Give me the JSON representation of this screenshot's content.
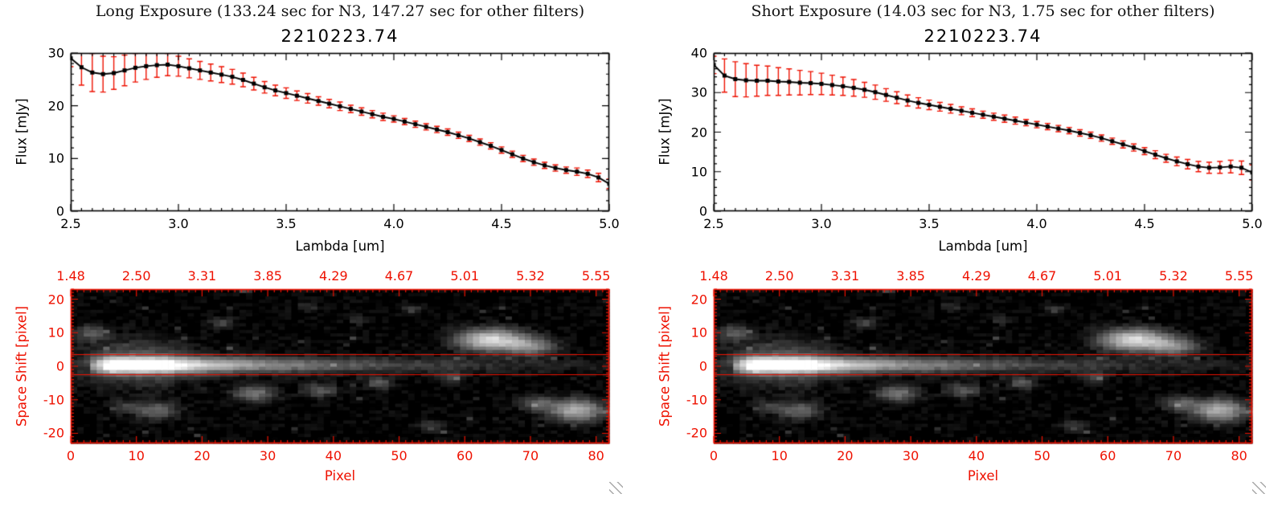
{
  "colors": {
    "red": "#ee1100",
    "black": "#000000",
    "bg": "#ffffff"
  },
  "panels": [
    {
      "header": "Long Exposure (133.24 sec for N3, 147.27 sec for other filters)",
      "spectrum": 0,
      "image": 1
    },
    {
      "header": "Short Exposure (14.03 sec for N3, 1.75 sec for other filters)",
      "spectrum": 2,
      "image": 3
    }
  ],
  "chart_data": [
    {
      "type": "line",
      "panel": "Long Exposure",
      "title": "2210223.74",
      "xlabel": "Lambda [um]",
      "ylabel": "Flux [mJy]",
      "xlim": [
        2.5,
        5.0
      ],
      "ylim": [
        0,
        30
      ],
      "xticks": [
        2.5,
        3.0,
        3.5,
        4.0,
        4.5,
        5.0
      ],
      "xtick_labels": [
        "2.5",
        "3.0",
        "3.5",
        "4.0",
        "4.5",
        "5.0"
      ],
      "yticks": [
        0,
        10,
        20,
        30
      ],
      "ytick_labels": [
        "0",
        "10",
        "20",
        "30"
      ],
      "x_minor_step": 0.05,
      "y_minor_step": 2,
      "marker": "square",
      "line_color": "#000000",
      "error_color": "#ee1100",
      "x": [
        2.5,
        2.55,
        2.6,
        2.65,
        2.7,
        2.75,
        2.8,
        2.85,
        2.9,
        2.95,
        3.0,
        3.05,
        3.1,
        3.15,
        3.2,
        3.25,
        3.3,
        3.35,
        3.4,
        3.45,
        3.5,
        3.55,
        3.6,
        3.65,
        3.7,
        3.75,
        3.8,
        3.85,
        3.9,
        3.95,
        4.0,
        4.05,
        4.1,
        4.15,
        4.2,
        4.25,
        4.3,
        4.35,
        4.4,
        4.45,
        4.5,
        4.55,
        4.6,
        4.65,
        4.7,
        4.75,
        4.8,
        4.85,
        4.9,
        4.95,
        5.0
      ],
      "y": [
        29.0,
        27.3,
        26.3,
        26.0,
        26.2,
        26.7,
        27.2,
        27.5,
        27.7,
        27.8,
        27.5,
        27.1,
        26.7,
        26.3,
        25.9,
        25.5,
        24.9,
        24.2,
        23.5,
        22.9,
        22.4,
        21.9,
        21.4,
        20.9,
        20.4,
        19.9,
        19.4,
        18.9,
        18.4,
        17.9,
        17.5,
        17.0,
        16.5,
        16.0,
        15.5,
        15.0,
        14.4,
        13.8,
        13.1,
        12.4,
        11.6,
        10.8,
        10.0,
        9.3,
        8.7,
        8.2,
        7.8,
        7.5,
        7.1,
        6.4,
        5.2
      ],
      "yerr": [
        1.6,
        3.4,
        3.6,
        3.4,
        3.1,
        2.9,
        2.7,
        2.5,
        2.3,
        2.1,
        1.9,
        1.8,
        1.7,
        1.6,
        1.5,
        1.4,
        1.3,
        1.2,
        1.1,
        1.0,
        1.0,
        0.9,
        0.9,
        0.8,
        0.8,
        0.8,
        0.7,
        0.7,
        0.7,
        0.7,
        0.6,
        0.6,
        0.6,
        0.6,
        0.6,
        0.6,
        0.6,
        0.6,
        0.6,
        0.6,
        0.6,
        0.6,
        0.6,
        0.6,
        0.6,
        0.6,
        0.6,
        0.7,
        0.7,
        0.8,
        0.9
      ]
    },
    {
      "type": "heatmap",
      "panel": "Long Exposure",
      "xlabel": "Pixel",
      "ylabel": "Space Shift [pixel]",
      "xlim": [
        0,
        82
      ],
      "ylim": [
        -23,
        23
      ],
      "xticks": [
        0,
        10,
        20,
        30,
        40,
        50,
        60,
        70,
        80
      ],
      "xtick_labels": [
        "0",
        "10",
        "20",
        "30",
        "40",
        "50",
        "60",
        "70",
        "80"
      ],
      "yticks": [
        -20,
        -10,
        0,
        10,
        20
      ],
      "ytick_labels": [
        "-20",
        "-10",
        "0",
        "10",
        "20"
      ],
      "x_minor_step": 1,
      "y_minor_step": 1,
      "top_axis_labels": [
        "1.48",
        "2.50",
        "3.31",
        "3.85",
        "4.29",
        "4.67",
        "5.01",
        "5.32",
        "5.55"
      ],
      "top_axis_positions": [
        0,
        10,
        20,
        30,
        40,
        50,
        60,
        70,
        80
      ],
      "aperture_lines_y": [
        3.5,
        -2.5
      ],
      "trace": {
        "y_center": 0.5,
        "sigma": 1.6,
        "rise_start": 3,
        "core_x0": 6,
        "core_x1": 16,
        "core_amp": 1.0,
        "tail_amp": 0.9,
        "decay_scale": 24
      },
      "halo": {
        "x": 10,
        "y": 1,
        "sx": 6,
        "sy": 4.5,
        "amp": 0.3
      },
      "blobs": [
        [
          64,
          8,
          3.5,
          2.2,
          0.85
        ],
        [
          70,
          6,
          2.5,
          1.8,
          0.45
        ],
        [
          77,
          -13,
          2.8,
          2.2,
          0.65
        ],
        [
          71,
          -11,
          2.0,
          1.5,
          0.3
        ],
        [
          28,
          -8,
          2.2,
          1.6,
          0.4
        ],
        [
          38,
          -7,
          1.8,
          1.4,
          0.3
        ],
        [
          13,
          -13,
          2.2,
          1.8,
          0.35
        ],
        [
          8,
          -12,
          1.5,
          1.2,
          0.2
        ],
        [
          47,
          -5,
          1.4,
          1.2,
          0.3
        ],
        [
          55,
          -18,
          1.5,
          1.2,
          0.2
        ],
        [
          23,
          13,
          1.3,
          1.1,
          0.2
        ],
        [
          52,
          17,
          1.2,
          1.0,
          0.18
        ],
        [
          3,
          10,
          1.8,
          1.5,
          0.3
        ],
        [
          36,
          18,
          1.2,
          1.0,
          0.15
        ],
        [
          44,
          14,
          1.2,
          1.0,
          0.15
        ],
        [
          58,
          -3,
          1.5,
          1.2,
          0.2
        ]
      ],
      "noise_seed": 11,
      "noise_amp": 0.05,
      "speckle_prob": 0.02,
      "speckle_amp": 0.22
    },
    {
      "type": "line",
      "panel": "Short Exposure",
      "title": "2210223.74",
      "xlabel": "Lambda [um]",
      "ylabel": "Flux [mJy]",
      "xlim": [
        2.5,
        5.0
      ],
      "ylim": [
        0,
        40
      ],
      "xticks": [
        2.5,
        3.0,
        3.5,
        4.0,
        4.5,
        5.0
      ],
      "xtick_labels": [
        "2.5",
        "3.0",
        "3.5",
        "4.0",
        "4.5",
        "5.0"
      ],
      "yticks": [
        0,
        10,
        20,
        30,
        40
      ],
      "ytick_labels": [
        "0",
        "10",
        "20",
        "30",
        "40"
      ],
      "x_minor_step": 0.05,
      "y_minor_step": 2,
      "marker": "square",
      "line_color": "#000000",
      "error_color": "#ee1100",
      "x": [
        2.5,
        2.55,
        2.6,
        2.65,
        2.7,
        2.75,
        2.8,
        2.85,
        2.9,
        2.95,
        3.0,
        3.05,
        3.1,
        3.15,
        3.2,
        3.25,
        3.3,
        3.35,
        3.4,
        3.45,
        3.5,
        3.55,
        3.6,
        3.65,
        3.7,
        3.75,
        3.8,
        3.85,
        3.9,
        3.95,
        4.0,
        4.05,
        4.1,
        4.15,
        4.2,
        4.25,
        4.3,
        4.35,
        4.4,
        4.45,
        4.5,
        4.55,
        4.6,
        4.65,
        4.7,
        4.75,
        4.8,
        4.85,
        4.9,
        4.95,
        5.0
      ],
      "y": [
        37.0,
        34.3,
        33.4,
        33.1,
        33.0,
        33.0,
        32.8,
        32.7,
        32.5,
        32.4,
        32.2,
        31.9,
        31.6,
        31.2,
        30.7,
        30.1,
        29.4,
        28.7,
        28.0,
        27.4,
        26.9,
        26.4,
        25.9,
        25.4,
        24.9,
        24.4,
        23.9,
        23.4,
        22.9,
        22.4,
        21.9,
        21.4,
        20.9,
        20.4,
        19.8,
        19.2,
        18.5,
        17.7,
        16.9,
        16.1,
        15.2,
        14.3,
        13.4,
        12.6,
        11.9,
        11.3,
        11.0,
        11.1,
        11.3,
        11.0,
        9.8
      ],
      "yerr": [
        2.2,
        4.2,
        4.4,
        4.2,
        3.9,
        3.7,
        3.5,
        3.3,
        3.1,
        2.9,
        2.7,
        2.5,
        2.3,
        2.1,
        1.9,
        1.8,
        1.6,
        1.5,
        1.4,
        1.3,
        1.2,
        1.1,
        1.1,
        1.0,
        1.0,
        0.9,
        0.9,
        0.9,
        0.9,
        0.8,
        0.8,
        0.8,
        0.8,
        0.8,
        0.8,
        0.8,
        0.8,
        0.8,
        0.9,
        0.9,
        0.9,
        1.0,
        1.0,
        1.1,
        1.2,
        1.3,
        1.4,
        1.5,
        1.6,
        1.7,
        1.9
      ]
    },
    {
      "type": "heatmap",
      "panel": "Short Exposure",
      "xlabel": "Pixel",
      "ylabel": "Space Shift [pixel]",
      "xlim": [
        0,
        82
      ],
      "ylim": [
        -23,
        23
      ],
      "xticks": [
        0,
        10,
        20,
        30,
        40,
        50,
        60,
        70,
        80
      ],
      "xtick_labels": [
        "0",
        "10",
        "20",
        "30",
        "40",
        "50",
        "60",
        "70",
        "80"
      ],
      "yticks": [
        -20,
        -10,
        0,
        10,
        20
      ],
      "ytick_labels": [
        "-20",
        "-10",
        "0",
        "10",
        "20"
      ],
      "x_minor_step": 1,
      "y_minor_step": 1,
      "top_axis_labels": [
        "1.48",
        "2.50",
        "3.31",
        "3.85",
        "4.29",
        "4.67",
        "5.01",
        "5.32",
        "5.55"
      ],
      "top_axis_positions": [
        0,
        10,
        20,
        30,
        40,
        50,
        60,
        70,
        80
      ],
      "aperture_lines_y": [
        3.5,
        -2.5
      ],
      "trace": {
        "y_center": 0.5,
        "sigma": 1.6,
        "rise_start": 3,
        "core_x0": 6,
        "core_x1": 16,
        "core_amp": 1.0,
        "tail_amp": 0.9,
        "decay_scale": 24
      },
      "halo": {
        "x": 10,
        "y": 1,
        "sx": 6,
        "sy": 4.5,
        "amp": 0.3
      },
      "blobs": [
        [
          64,
          8,
          3.5,
          2.2,
          0.85
        ],
        [
          70,
          6,
          2.5,
          1.8,
          0.45
        ],
        [
          77,
          -13,
          2.8,
          2.2,
          0.65
        ],
        [
          71,
          -11,
          2.0,
          1.5,
          0.3
        ],
        [
          28,
          -8,
          2.2,
          1.6,
          0.4
        ],
        [
          38,
          -7,
          1.8,
          1.4,
          0.3
        ],
        [
          13,
          -13,
          2.2,
          1.8,
          0.35
        ],
        [
          8,
          -12,
          1.5,
          1.2,
          0.2
        ],
        [
          47,
          -5,
          1.4,
          1.2,
          0.3
        ],
        [
          55,
          -18,
          1.5,
          1.2,
          0.2
        ],
        [
          23,
          13,
          1.3,
          1.1,
          0.2
        ],
        [
          52,
          17,
          1.2,
          1.0,
          0.18
        ],
        [
          3,
          10,
          1.8,
          1.5,
          0.3
        ],
        [
          36,
          18,
          1.2,
          1.0,
          0.15
        ],
        [
          44,
          14,
          1.2,
          1.0,
          0.15
        ],
        [
          58,
          -3,
          1.5,
          1.2,
          0.2
        ]
      ],
      "noise_seed": 11,
      "noise_amp": 0.05,
      "speckle_prob": 0.02,
      "speckle_amp": 0.22
    }
  ]
}
